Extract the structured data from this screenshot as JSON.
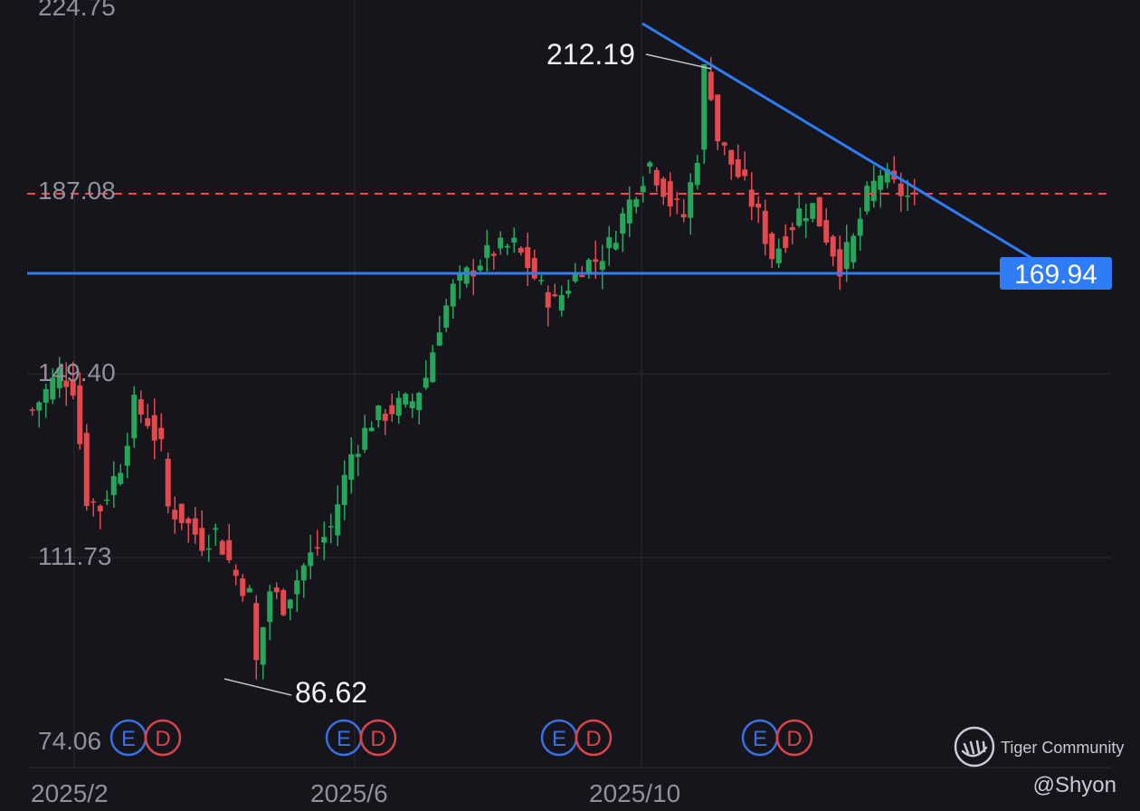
{
  "chart_data": {
    "type": "candlestick",
    "y_tick_labels": [
      "224.75",
      "187.08",
      "149.40",
      "111.73",
      "74.06"
    ],
    "x_tick_labels": [
      "2025/2",
      "2025/6",
      "2025/10"
    ],
    "ylim": [
      74.06,
      224.75
    ],
    "grid": true,
    "annotations": {
      "high": {
        "label": "212.19",
        "value": 212.19
      },
      "low": {
        "label": "86.62",
        "value": 86.62
      }
    },
    "reference_lines": [
      {
        "kind": "horizontal-dashed",
        "value": 187.08,
        "color": "#e5484d"
      },
      {
        "kind": "horizontal-solid",
        "value": 169.94,
        "label": "169.94",
        "color": "#2e7cf6"
      },
      {
        "kind": "trendline",
        "from_value": 214.8,
        "to_value": 172.5,
        "color": "#2e7cf6"
      }
    ],
    "events": [
      {
        "date": "2025/2",
        "labels": [
          "E",
          "D"
        ]
      },
      {
        "date": "2025/6",
        "labels": [
          "E",
          "D"
        ]
      },
      {
        "date": "2025/8",
        "labels": [
          "E",
          "D"
        ]
      },
      {
        "date": "2025/11",
        "labels": [
          "E",
          "D"
        ]
      }
    ],
    "colors": {
      "up": "#26a65b",
      "down": "#e5484d",
      "grid": "#2a2b33",
      "background": "#15151b"
    },
    "price_path": [
      [
        0,
        142
      ],
      [
        4,
        150
      ],
      [
        6,
        147
      ],
      [
        8,
        124
      ],
      [
        10,
        122
      ],
      [
        13,
        131
      ],
      [
        15,
        143
      ],
      [
        17,
        140
      ],
      [
        19,
        134
      ],
      [
        20,
        122
      ],
      [
        22,
        120
      ],
      [
        25,
        115
      ],
      [
        27,
        117
      ],
      [
        30,
        108
      ],
      [
        32,
        104
      ],
      [
        33,
        90
      ],
      [
        35,
        105
      ],
      [
        37,
        102
      ],
      [
        40,
        110
      ],
      [
        44,
        118
      ],
      [
        47,
        133
      ],
      [
        50,
        140
      ],
      [
        54,
        143
      ],
      [
        56,
        144
      ],
      [
        58,
        149
      ],
      [
        60,
        160
      ],
      [
        62,
        167
      ],
      [
        64,
        170
      ],
      [
        66,
        173
      ],
      [
        68,
        175
      ],
      [
        71,
        176
      ],
      [
        73,
        172
      ],
      [
        75,
        167
      ],
      [
        77,
        164
      ],
      [
        79,
        168
      ],
      [
        81,
        172
      ],
      [
        83,
        173
      ],
      [
        85,
        176
      ],
      [
        87,
        182
      ],
      [
        89,
        188
      ],
      [
        91,
        193
      ],
      [
        93,
        188
      ],
      [
        94,
        185
      ],
      [
        96,
        182
      ],
      [
        98,
        195
      ],
      [
        99,
        212
      ],
      [
        100,
        208
      ],
      [
        101,
        198
      ],
      [
        103,
        193
      ],
      [
        105,
        188
      ],
      [
        107,
        182
      ],
      [
        109,
        174
      ],
      [
        111,
        178
      ],
      [
        113,
        183
      ],
      [
        115,
        184
      ],
      [
        117,
        178
      ],
      [
        119,
        172
      ],
      [
        121,
        177
      ],
      [
        123,
        186
      ],
      [
        125,
        191
      ],
      [
        127,
        188
      ],
      [
        129,
        186
      ],
      [
        130,
        185
      ]
    ]
  },
  "watermark": {
    "brand": "Tiger Community",
    "handle": "@Shyon"
  }
}
